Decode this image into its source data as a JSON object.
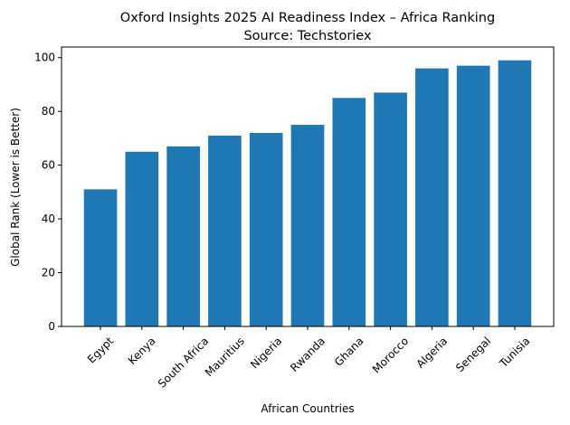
{
  "chart_data": {
    "type": "bar",
    "title": "Oxford Insights 2025 AI Readiness Index – Africa Ranking",
    "subtitle": "Source: Techstoriex",
    "x_label": "African Countries",
    "y_label": "Global Rank (Lower is Better)",
    "categories": [
      "Egypt",
      "Kenya",
      "South Africa",
      "Mauritius",
      "Nigeria",
      "Rwanda",
      "Ghana",
      "Morocco",
      "Algeria",
      "Senegal",
      "Tunisia"
    ],
    "values": [
      51,
      65,
      67,
      71,
      72,
      75,
      85,
      87,
      96,
      97,
      99
    ],
    "color": "#1f77b4",
    "ylim": [
      0,
      103.95
    ],
    "yticks": [
      0,
      20,
      40,
      60,
      80,
      100
    ],
    "grid": false
  }
}
